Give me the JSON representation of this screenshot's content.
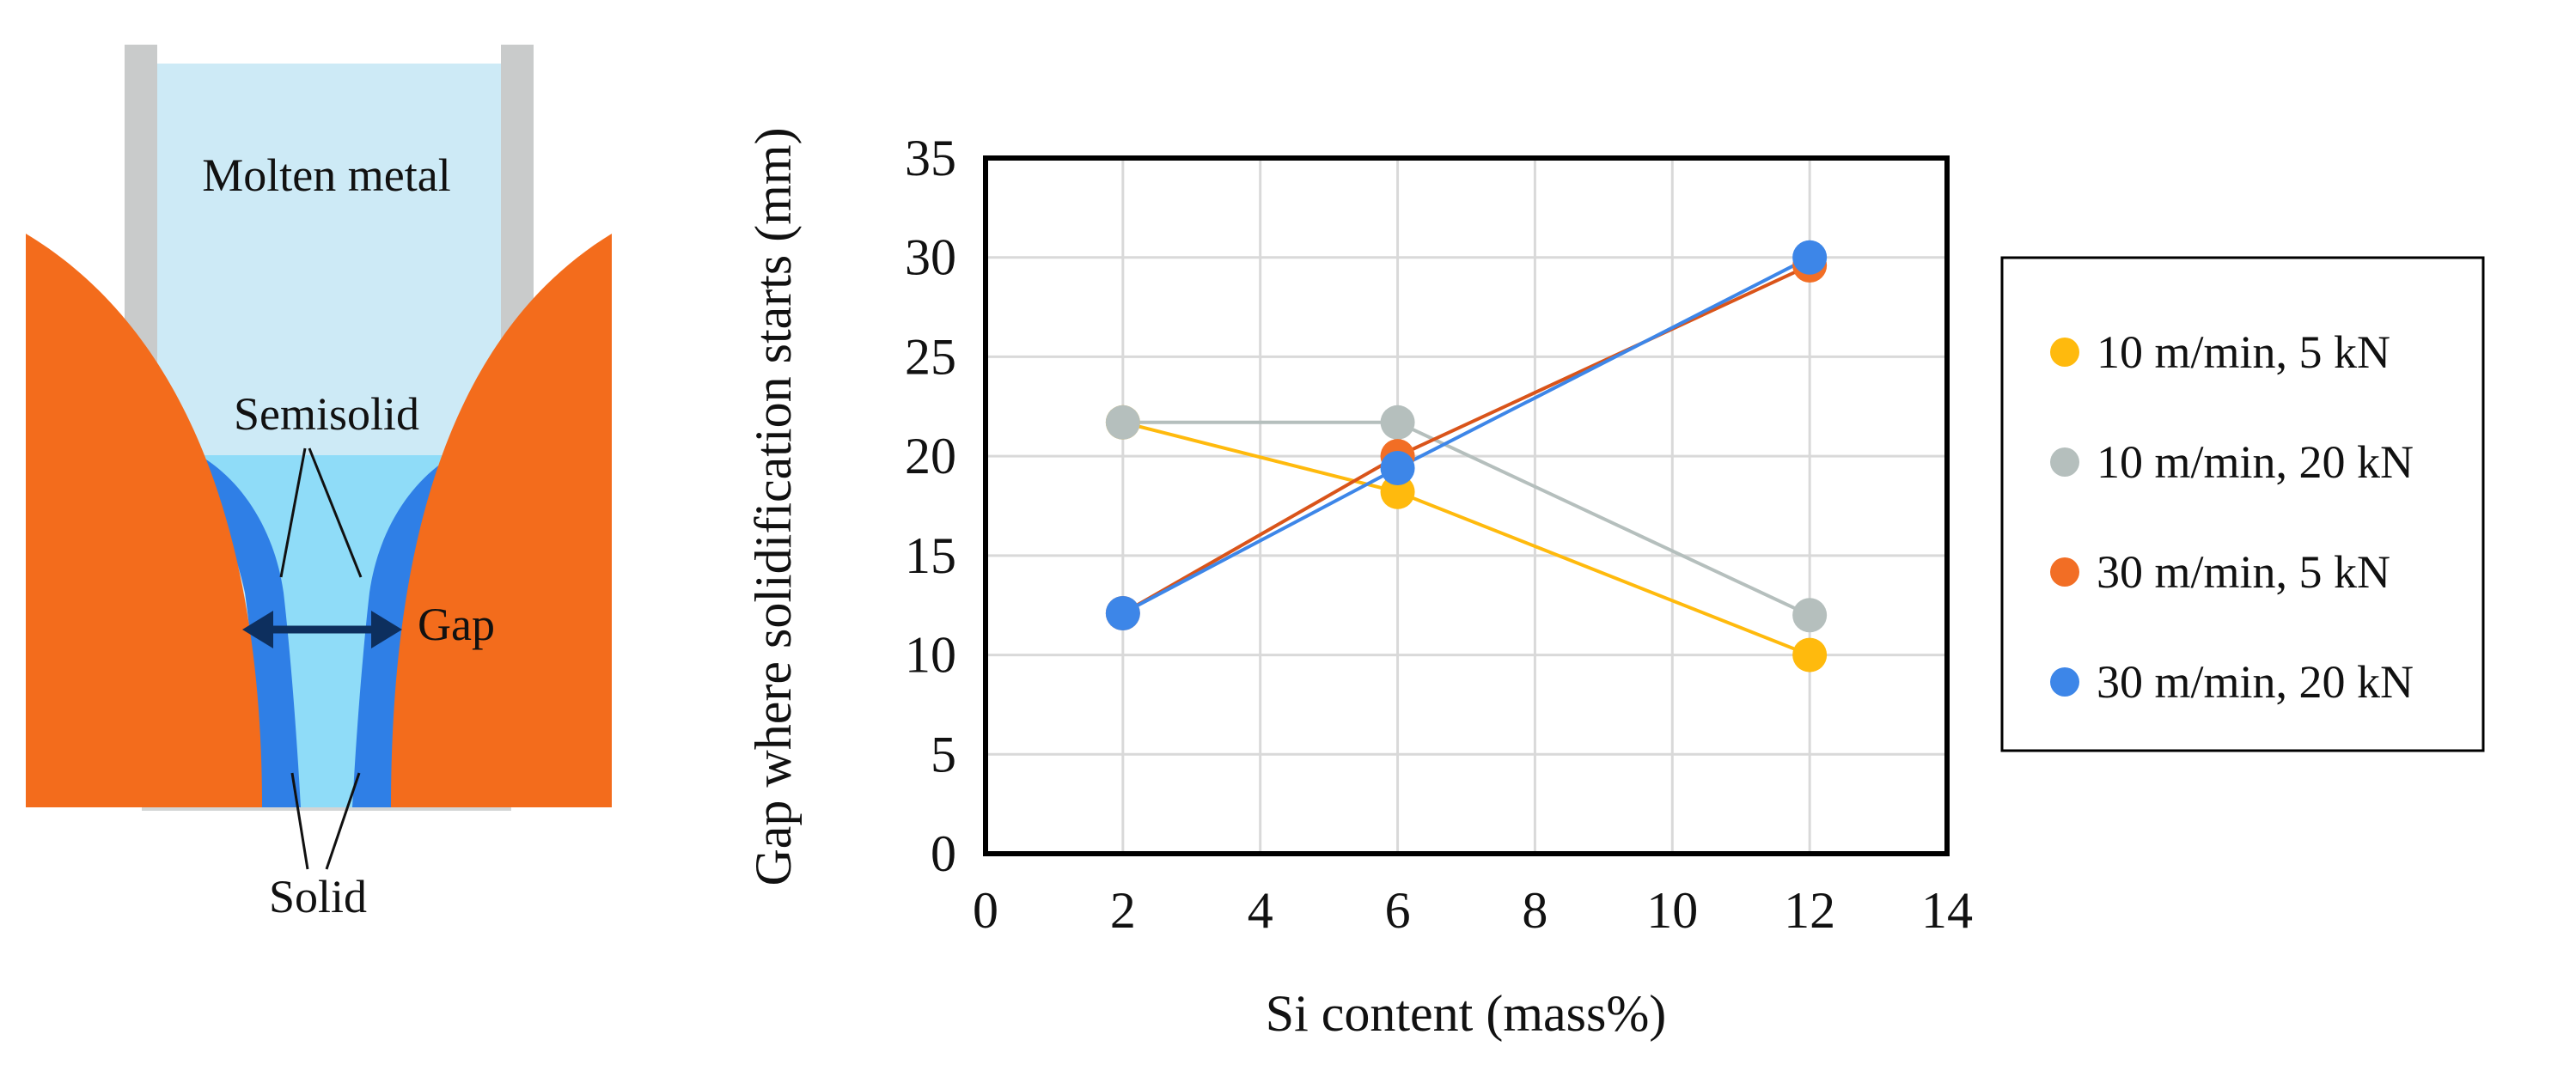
{
  "diagram": {
    "labels": {
      "molten_metal": "Molten metal",
      "semisolid": "Semisolid",
      "gap": "Gap",
      "solid": "Solid"
    },
    "colors": {
      "liquid": "#cdeaf6",
      "semisolid": "#8fdcf8",
      "solid": "#2f7fe6",
      "roll": "#f36c1c",
      "nozzle": "#c9cbcb",
      "arrow": "#0d2f5e"
    }
  },
  "chart_data": {
    "type": "line",
    "title": "",
    "xlabel": "Si content (mass%)",
    "ylabel": "Gap where solidification starts (mm)",
    "xlim": [
      0,
      14
    ],
    "ylim": [
      0,
      35
    ],
    "x_ticks": [
      0,
      2,
      4,
      6,
      8,
      10,
      12,
      14
    ],
    "y_ticks": [
      0,
      5,
      10,
      15,
      20,
      25,
      30,
      35
    ],
    "grid": true,
    "legend_position": "right",
    "series": [
      {
        "name": "10 m/min, 5 kN",
        "color": "#ffba0d",
        "x": [
          2,
          6,
          12
        ],
        "y": [
          21.7,
          18.2,
          10.0
        ]
      },
      {
        "name": "10 m/min, 20 kN",
        "color": "#b5bfbd",
        "x": [
          2,
          6,
          12
        ],
        "y": [
          21.7,
          21.7,
          12.0
        ]
      },
      {
        "name": "30 m/min, 5 kN",
        "color": "#cc4c12",
        "line_color": "#d9541a",
        "marker_color": "#f26e25",
        "x": [
          2,
          6,
          12
        ],
        "y": [
          12.1,
          20.0,
          29.6
        ]
      },
      {
        "name": "30 m/min, 20 kN",
        "color": "#3d86e8",
        "x": [
          2,
          6,
          12
        ],
        "y": [
          12.1,
          19.4,
          30.0
        ]
      }
    ]
  }
}
